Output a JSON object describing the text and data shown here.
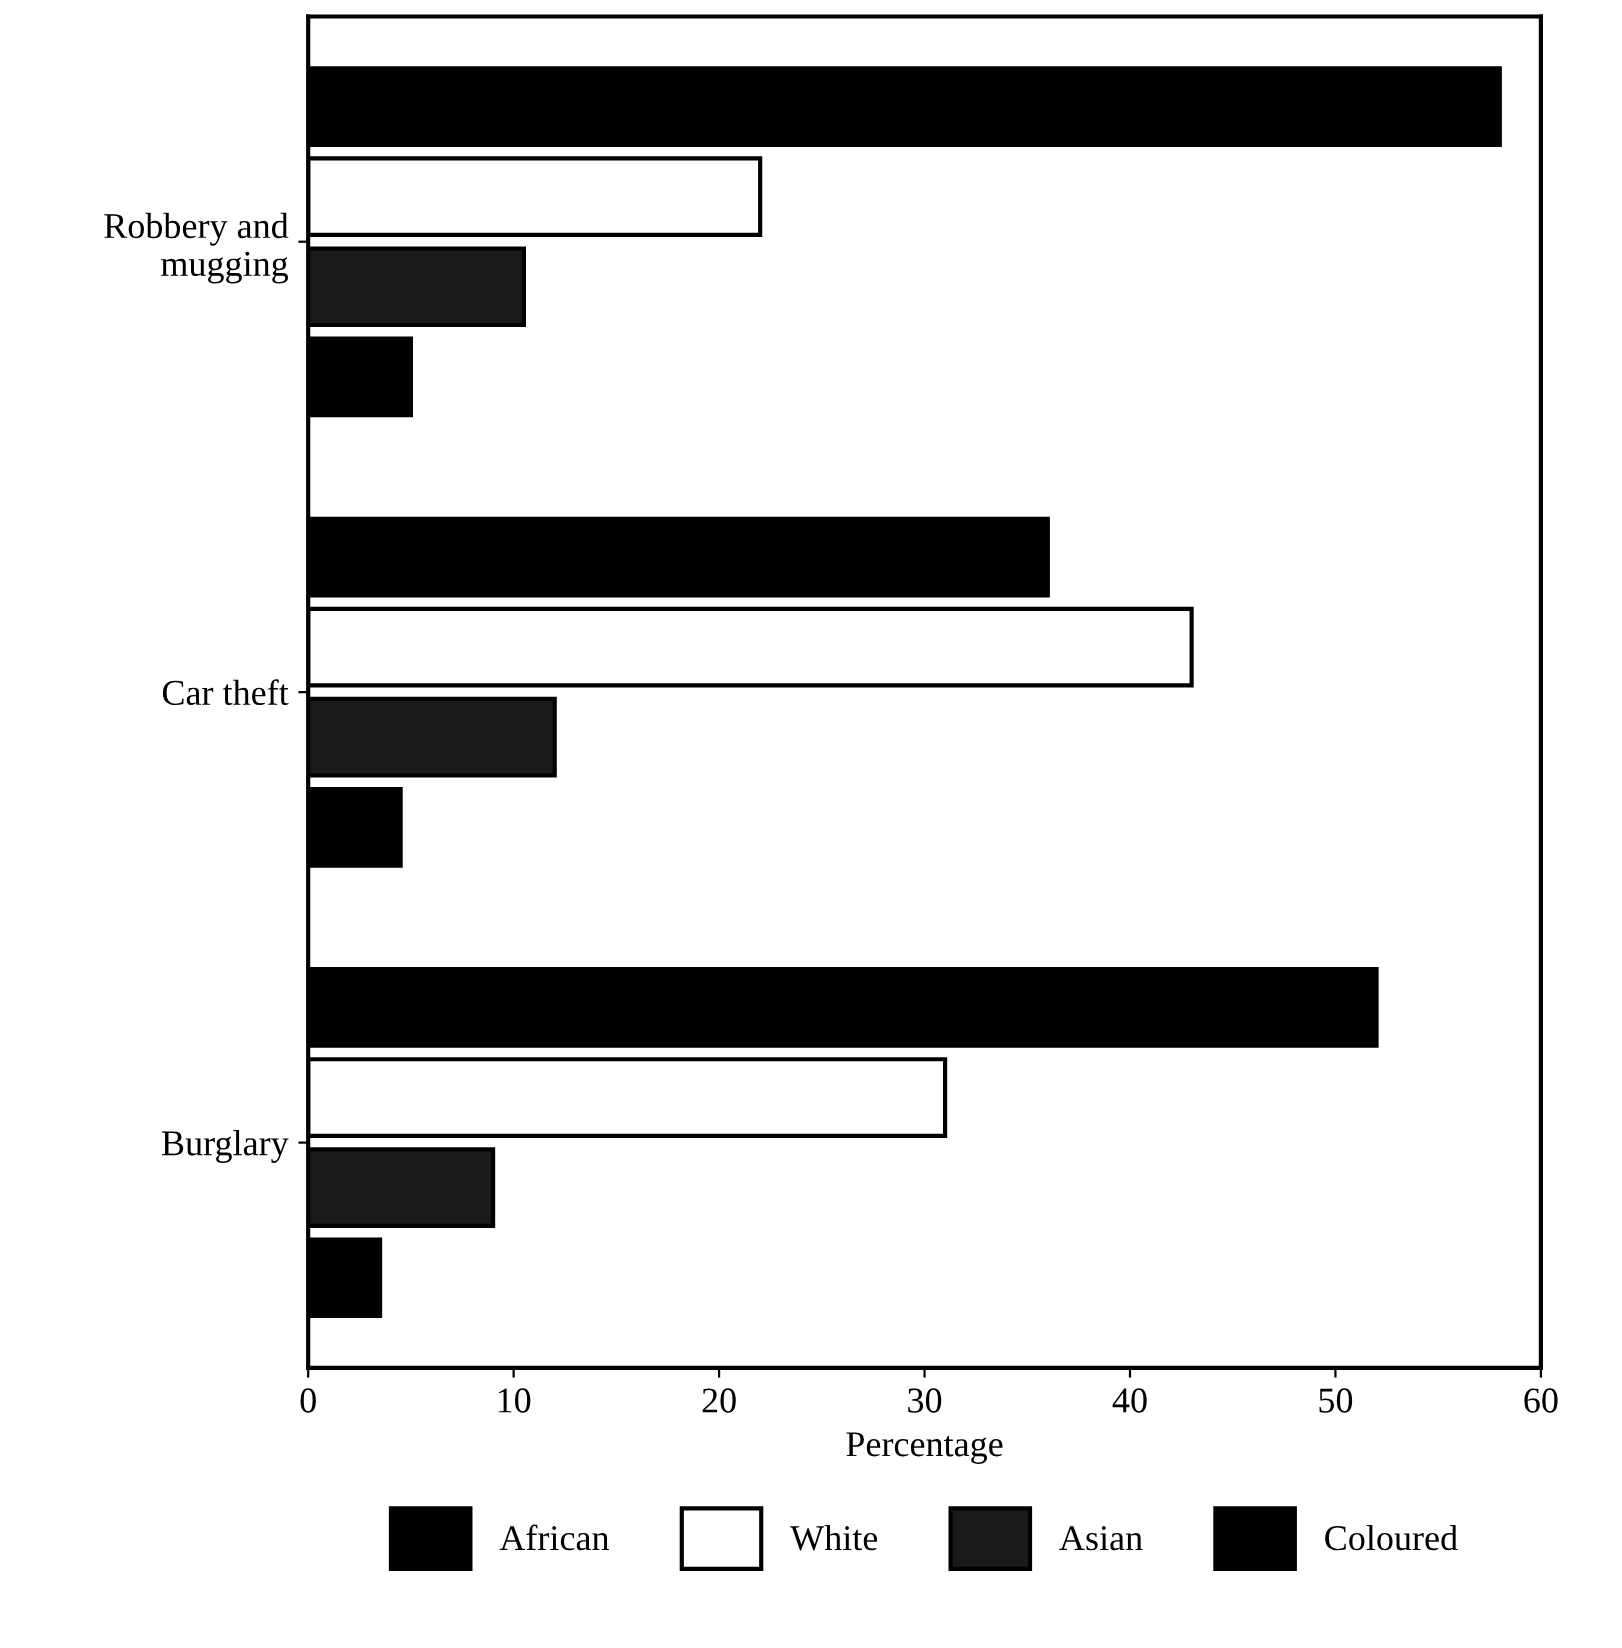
{
  "chart_data": {
    "type": "bar",
    "orientation": "horizontal",
    "categories": [
      "Robbery and\nmugging",
      "Car theft",
      "Burglary"
    ],
    "series": [
      {
        "name": "African",
        "color": "#000000",
        "values": [
          58,
          36,
          52
        ]
      },
      {
        "name": "White",
        "color": "#ffffff",
        "values": [
          22,
          43,
          31
        ]
      },
      {
        "name": "Asian",
        "color": "#1a1a1a",
        "values": [
          10.5,
          12,
          9
        ]
      },
      {
        "name": "Coloured",
        "color": "#000000",
        "values": [
          5,
          4.5,
          3.5
        ]
      }
    ],
    "xlabel": "Percentage",
    "xlim": [
      0,
      60
    ],
    "xticks": [
      0,
      10,
      20,
      30,
      40,
      50,
      60
    ],
    "grid": false,
    "legend": "bottom"
  }
}
